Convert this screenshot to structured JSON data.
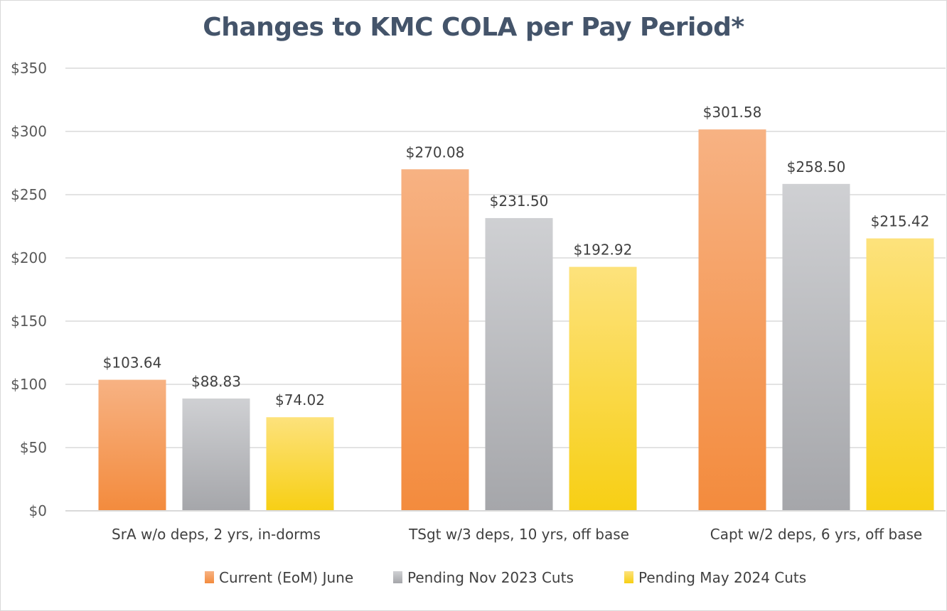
{
  "chart_data": {
    "type": "bar",
    "title": "Changes to KMC COLA per Pay Period*",
    "categories": [
      "SrA w/o deps, 2 yrs, in-dorms",
      "TSgt w/3 deps, 10 yrs, off base",
      "Capt w/2 deps, 6 yrs, off base"
    ],
    "series": [
      {
        "name": "Current (EoM) June",
        "values": [
          103.64,
          270.08,
          301.58
        ],
        "labels": [
          "$103.64",
          "$270.08",
          "$301.58"
        ],
        "color": "#f4a15f",
        "color_light": "#f7b283",
        "color_dark": "#f38b3d"
      },
      {
        "name": "Pending Nov 2023 Cuts",
        "values": [
          88.83,
          231.5,
          258.5
        ],
        "labels": [
          "$88.83",
          "$231.50",
          "$258.50"
        ],
        "color": "#b9babd",
        "color_light": "#cfd0d3",
        "color_dark": "#a5a6aa"
      },
      {
        "name": "Pending May 2024 Cuts",
        "values": [
          74.02,
          192.92,
          215.42
        ],
        "labels": [
          "$74.02",
          "$192.92",
          "$215.42"
        ],
        "color": "#fbd43a",
        "color_light": "#fde27c",
        "color_dark": "#f7cf14"
      }
    ],
    "ylim": [
      0,
      350
    ],
    "yticks": [
      0,
      50,
      100,
      150,
      200,
      250,
      300,
      350
    ],
    "ytick_labels": [
      "$0",
      "$50",
      "$100",
      "$150",
      "$200",
      "$250",
      "$300",
      "$350"
    ],
    "xlabel": "",
    "ylabel": "",
    "grid": true,
    "legend_position": "bottom"
  }
}
